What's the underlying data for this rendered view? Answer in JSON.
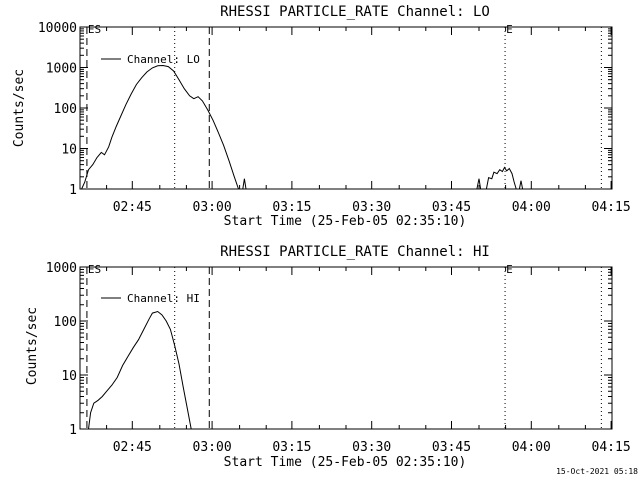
{
  "footer": {
    "timestamp": "15-Oct-2021 05:18"
  },
  "chart_data": [
    {
      "type": "line",
      "title": "RHESSI PARTICLE_RATE Channel: LO",
      "xlabel": "Start Time (25-Feb-05 02:35:10)",
      "ylabel": "Counts/sec",
      "yscale": "log",
      "ylim": [
        1,
        10000
      ],
      "xlim_minutes": [
        0,
        100
      ],
      "xticks": [
        {
          "t": 9.83,
          "label": "02:45"
        },
        {
          "t": 24.83,
          "label": "03:00"
        },
        {
          "t": 39.83,
          "label": "03:15"
        },
        {
          "t": 54.83,
          "label": "03:30"
        },
        {
          "t": 69.83,
          "label": "03:45"
        },
        {
          "t": 84.83,
          "label": "04:00"
        },
        {
          "t": 99.83,
          "label": "04:15"
        }
      ],
      "yticks": [
        {
          "v": 1,
          "label": "1"
        },
        {
          "v": 10,
          "label": "10"
        },
        {
          "v": 100,
          "label": "100"
        },
        {
          "v": 1000,
          "label": "1000"
        },
        {
          "v": 10000,
          "label": "10000"
        }
      ],
      "legend": "Channel: LO",
      "vlines": [
        {
          "t": 1.3,
          "style": "dashed",
          "label": "ES"
        },
        {
          "t": 17.8,
          "style": "dotted",
          "label": ""
        },
        {
          "t": 24.3,
          "style": "dashed",
          "label": ""
        },
        {
          "t": 79.9,
          "style": "dotted",
          "label": "E"
        },
        {
          "t": 98.0,
          "style": "dotted",
          "label": ""
        }
      ],
      "segments": [
        [
          [
            0.3,
            1
          ],
          [
            0.9,
            1.5
          ],
          [
            1.6,
            3
          ],
          [
            2.4,
            4
          ],
          [
            3.2,
            6
          ],
          [
            4.0,
            8
          ],
          [
            4.6,
            7
          ],
          [
            5.4,
            11
          ],
          [
            6.0,
            19
          ],
          [
            6.8,
            35
          ],
          [
            7.6,
            60
          ],
          [
            8.6,
            120
          ],
          [
            9.6,
            220
          ],
          [
            10.6,
            380
          ],
          [
            11.6,
            560
          ],
          [
            12.6,
            780
          ],
          [
            13.6,
            980
          ],
          [
            14.6,
            1100
          ],
          [
            15.6,
            1120
          ],
          [
            16.6,
            1050
          ],
          [
            17.6,
            820
          ],
          [
            18.6,
            500
          ],
          [
            19.6,
            300
          ],
          [
            20.6,
            200
          ],
          [
            21.4,
            170
          ],
          [
            22.2,
            190
          ],
          [
            23.0,
            150
          ],
          [
            24.0,
            90
          ],
          [
            25.0,
            50
          ],
          [
            26.0,
            25
          ],
          [
            27.0,
            12
          ],
          [
            28.0,
            5
          ],
          [
            29.0,
            2
          ],
          [
            29.8,
            1
          ]
        ],
        [
          [
            30.6,
            1
          ],
          [
            30.9,
            1.8
          ],
          [
            31.2,
            1
          ]
        ],
        [
          [
            74.6,
            1
          ],
          [
            75.0,
            1.8
          ],
          [
            75.3,
            1
          ],
          [
            76.4,
            1
          ],
          [
            76.8,
            1.9
          ],
          [
            77.4,
            1.8
          ],
          [
            77.8,
            2.6
          ],
          [
            78.4,
            2.4
          ],
          [
            78.9,
            3.0
          ],
          [
            79.4,
            2.7
          ],
          [
            79.8,
            3.4
          ],
          [
            80.2,
            2.8
          ],
          [
            80.7,
            3.2
          ],
          [
            81.2,
            2.4
          ],
          [
            81.6,
            1.5
          ],
          [
            82.0,
            1
          ]
        ],
        [
          [
            82.6,
            1
          ],
          [
            82.9,
            1.6
          ],
          [
            83.2,
            1
          ]
        ]
      ]
    },
    {
      "type": "line",
      "title": "RHESSI PARTICLE_RATE Channel: HI",
      "xlabel": "Start Time (25-Feb-05 02:35:10)",
      "ylabel": "Counts/sec",
      "yscale": "log",
      "ylim": [
        1,
        1000
      ],
      "xlim_minutes": [
        0,
        100
      ],
      "xticks": [
        {
          "t": 9.83,
          "label": "02:45"
        },
        {
          "t": 24.83,
          "label": "03:00"
        },
        {
          "t": 39.83,
          "label": "03:15"
        },
        {
          "t": 54.83,
          "label": "03:30"
        },
        {
          "t": 69.83,
          "label": "03:45"
        },
        {
          "t": 84.83,
          "label": "04:00"
        },
        {
          "t": 99.83,
          "label": "04:15"
        }
      ],
      "yticks": [
        {
          "v": 1,
          "label": "1"
        },
        {
          "v": 10,
          "label": "10"
        },
        {
          "v": 100,
          "label": "100"
        },
        {
          "v": 1000,
          "label": "1000"
        }
      ],
      "legend": "Channel: HI",
      "vlines": [
        {
          "t": 1.3,
          "style": "dashed",
          "label": "ES"
        },
        {
          "t": 17.8,
          "style": "dotted",
          "label": ""
        },
        {
          "t": 24.3,
          "style": "dashed",
          "label": ""
        },
        {
          "t": 79.9,
          "style": "dotted",
          "label": "E"
        },
        {
          "t": 98.0,
          "style": "dotted",
          "label": ""
        }
      ],
      "segments": [
        [
          [
            1.6,
            1
          ],
          [
            2.0,
            2.0
          ],
          [
            2.6,
            3.0
          ],
          [
            3.4,
            3.4
          ],
          [
            4.2,
            4.0
          ],
          [
            5.0,
            5.0
          ],
          [
            6.0,
            6.5
          ],
          [
            7.0,
            9
          ],
          [
            8.0,
            15
          ],
          [
            9.0,
            22
          ],
          [
            10.0,
            32
          ],
          [
            11.0,
            45
          ],
          [
            12.0,
            70
          ],
          [
            13.0,
            110
          ],
          [
            13.6,
            140
          ],
          [
            14.6,
            150
          ],
          [
            15.4,
            130
          ],
          [
            16.2,
            100
          ],
          [
            17.0,
            70
          ],
          [
            17.8,
            35
          ],
          [
            18.6,
            16
          ],
          [
            19.4,
            6
          ],
          [
            20.2,
            2.3
          ],
          [
            20.9,
            1
          ]
        ]
      ]
    }
  ]
}
